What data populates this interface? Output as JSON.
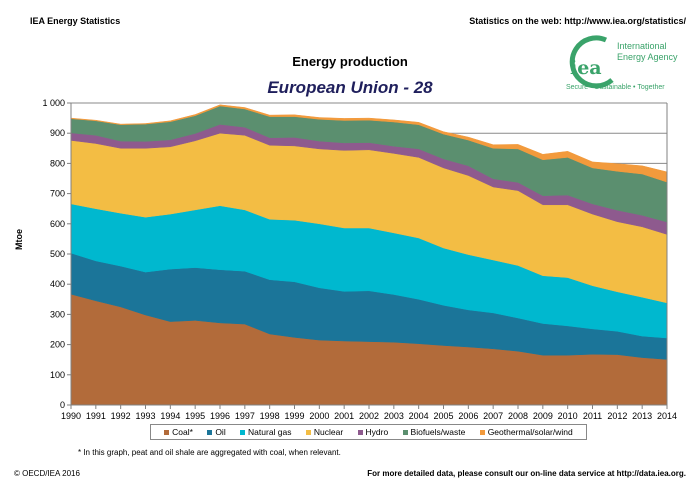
{
  "header": {
    "left": "IEA Energy Statistics",
    "right": "Statistics on the web: http://www.iea.org/statistics/"
  },
  "logo": {
    "mark": "iea",
    "name_line1": "International",
    "name_line2": "Energy Agency",
    "tagline": "Secure • Sustainable • Together",
    "color": "#3aa36a"
  },
  "footnote": "* In this graph, peat and oil shale are aggregated with coal, when relevant.",
  "footer": {
    "copyright": "© OECD/IEA 2016",
    "right": "For more detailed data, please consult our on-line data service at http://data.iea.org."
  },
  "chart_data": {
    "type": "area",
    "stacked": true,
    "title": "Energy production",
    "subtitle": "European Union - 28",
    "xlabel": "",
    "ylabel": "Mtoe",
    "ylim": [
      0,
      1000
    ],
    "yticks": [
      0,
      100,
      200,
      300,
      400,
      500,
      600,
      700,
      800,
      900,
      1000
    ],
    "ytick_labels": [
      "0",
      "100",
      "200",
      "300",
      "400",
      "500",
      "600",
      "700",
      "800",
      "900",
      "1 000"
    ],
    "grid": "horizontal",
    "legend_position": "bottom",
    "x": [
      "1990",
      "1991",
      "1992",
      "1993",
      "1994",
      "1995",
      "1996",
      "1997",
      "1998",
      "1999",
      "2000",
      "2001",
      "2002",
      "2003",
      "2004",
      "2005",
      "2006",
      "2007",
      "2008",
      "2009",
      "2010",
      "2011",
      "2012",
      "2013",
      "2014"
    ],
    "series": [
      {
        "name": "Coal*",
        "color": "#b26b3a",
        "values": [
          367,
          345,
          325,
          298,
          276,
          280,
          272,
          268,
          235,
          224,
          215,
          212,
          210,
          208,
          203,
          197,
          192,
          186,
          178,
          165,
          165,
          168,
          167,
          157,
          151
        ]
      },
      {
        "name": "Oil",
        "color": "#1b7599",
        "values": [
          136,
          132,
          135,
          142,
          174,
          175,
          176,
          175,
          180,
          184,
          173,
          164,
          168,
          158,
          147,
          133,
          123,
          119,
          110,
          105,
          97,
          84,
          77,
          71,
          71
        ]
      },
      {
        "name": "Natural gas",
        "color": "#00b8cf",
        "values": [
          163,
          173,
          175,
          182,
          182,
          191,
          212,
          203,
          200,
          204,
          212,
          210,
          208,
          204,
          203,
          190,
          183,
          175,
          174,
          158,
          160,
          143,
          131,
          129,
          116
        ]
      },
      {
        "name": "Nuclear",
        "color": "#f3bd44",
        "values": [
          210,
          216,
          215,
          228,
          223,
          229,
          240,
          247,
          245,
          246,
          248,
          257,
          259,
          263,
          267,
          265,
          262,
          242,
          248,
          235,
          241,
          237,
          232,
          233,
          227
        ]
      },
      {
        "name": "Hydro",
        "color": "#8e5a8e",
        "values": [
          25,
          27,
          24,
          23,
          23,
          24,
          29,
          27,
          25,
          28,
          26,
          25,
          24,
          24,
          28,
          30,
          32,
          27,
          27,
          30,
          32,
          34,
          38,
          38,
          41
        ]
      },
      {
        "name": "Biofuels/waste",
        "color": "#5b8f6f",
        "values": [
          47,
          48,
          54,
          57,
          60,
          59,
          61,
          60,
          70,
          69,
          72,
          74,
          74,
          80,
          80,
          82,
          85,
          101,
          111,
          119,
          125,
          119,
          129,
          137,
          132
        ]
      },
      {
        "name": "Geothermal/solar/wind",
        "color": "#f29a3c",
        "values": [
          2,
          2,
          2,
          2,
          3,
          4,
          4,
          5,
          5,
          6,
          6,
          7,
          7,
          7,
          8,
          8,
          10,
          12,
          15,
          18,
          20,
          20,
          25,
          27,
          34
        ]
      }
    ]
  }
}
